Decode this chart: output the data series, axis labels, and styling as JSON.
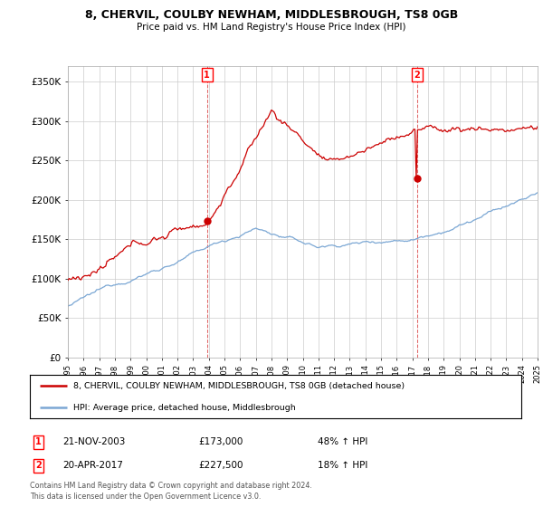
{
  "title": "8, CHERVIL, COULBY NEWHAM, MIDDLESBROUGH, TS8 0GB",
  "subtitle": "Price paid vs. HM Land Registry's House Price Index (HPI)",
  "ylim": [
    0,
    370000
  ],
  "yticks": [
    0,
    50000,
    100000,
    150000,
    200000,
    250000,
    300000,
    350000
  ],
  "ytick_labels": [
    "£0",
    "£50K",
    "£100K",
    "£150K",
    "£200K",
    "£250K",
    "£300K",
    "£350K"
  ],
  "hpi_color": "#7ba7d4",
  "price_color": "#cc0000",
  "t1_year": 2003.88,
  "t1_price": 173000,
  "t2_year": 2017.29,
  "t2_price": 227500,
  "marker1_date_str": "21-NOV-2003",
  "marker1_amount": "£173,000",
  "marker1_hpi": "48% ↑ HPI",
  "marker2_date_str": "20-APR-2017",
  "marker2_amount": "£227,500",
  "marker2_hpi": "18% ↑ HPI",
  "legend_line1": "8, CHERVIL, COULBY NEWHAM, MIDDLESBROUGH, TS8 0GB (detached house)",
  "legend_line2": "HPI: Average price, detached house, Middlesbrough",
  "footer1": "Contains HM Land Registry data © Crown copyright and database right 2024.",
  "footer2": "This data is licensed under the Open Government Licence v3.0.",
  "bg_color": "#ffffff",
  "grid_color": "#cccccc",
  "xstart": 1995,
  "xend": 2025
}
